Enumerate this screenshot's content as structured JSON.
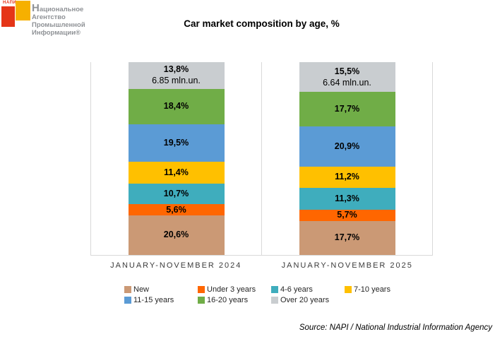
{
  "logo": {
    "mark": "НАПИ",
    "lines": [
      "Национальное",
      "Агентство",
      "Промышленной",
      "Информации®"
    ],
    "red": "#e53517",
    "yellow": "#f6b000"
  },
  "title": "Car market composition by age, %",
  "chart_data": {
    "type": "bar",
    "stacked": true,
    "unit": "%",
    "title": "Car market composition by age, %",
    "categories": [
      "JANUARY-NOVEMBER 2024",
      "JANUARY-NOVEMBER 2025"
    ],
    "series": [
      {
        "name": "New",
        "color": "#cb9975",
        "values": [
          20.6,
          17.7
        ]
      },
      {
        "name": "Under 3 years",
        "color": "#ff6600",
        "values": [
          5.6,
          5.7
        ]
      },
      {
        "name": "4-6 years",
        "color": "#3fadbd",
        "values": [
          10.7,
          11.3
        ]
      },
      {
        "name": "7-10 years",
        "color": "#ffc000",
        "values": [
          11.4,
          11.2
        ]
      },
      {
        "name": "11-15 years",
        "color": "#5b9bd5",
        "values": [
          19.5,
          20.9
        ]
      },
      {
        "name": "16-20 years",
        "color": "#70ad47",
        "values": [
          18.4,
          17.7
        ]
      },
      {
        "name": "Over 20 years",
        "color": "#c9cdd0",
        "values": [
          13.8,
          15.5
        ]
      }
    ],
    "value_labels": [
      [
        "20,6%",
        "5,6%",
        "10,7%",
        "11,4%",
        "19,5%",
        "18,4%",
        "13,8%"
      ],
      [
        "17,7%",
        "5,7%",
        "11,3%",
        "11,2%",
        "20,9%",
        "17,7%",
        "15,5%"
      ]
    ],
    "totals": [
      "6.85 mln.un.",
      "6.64 mln.un."
    ],
    "ylim": [
      0,
      100
    ],
    "grid": false,
    "legend_position": "bottom",
    "panel_border_color": "#d9d9d9"
  },
  "source": "Source: NAPI / National Industrial Information Agency"
}
